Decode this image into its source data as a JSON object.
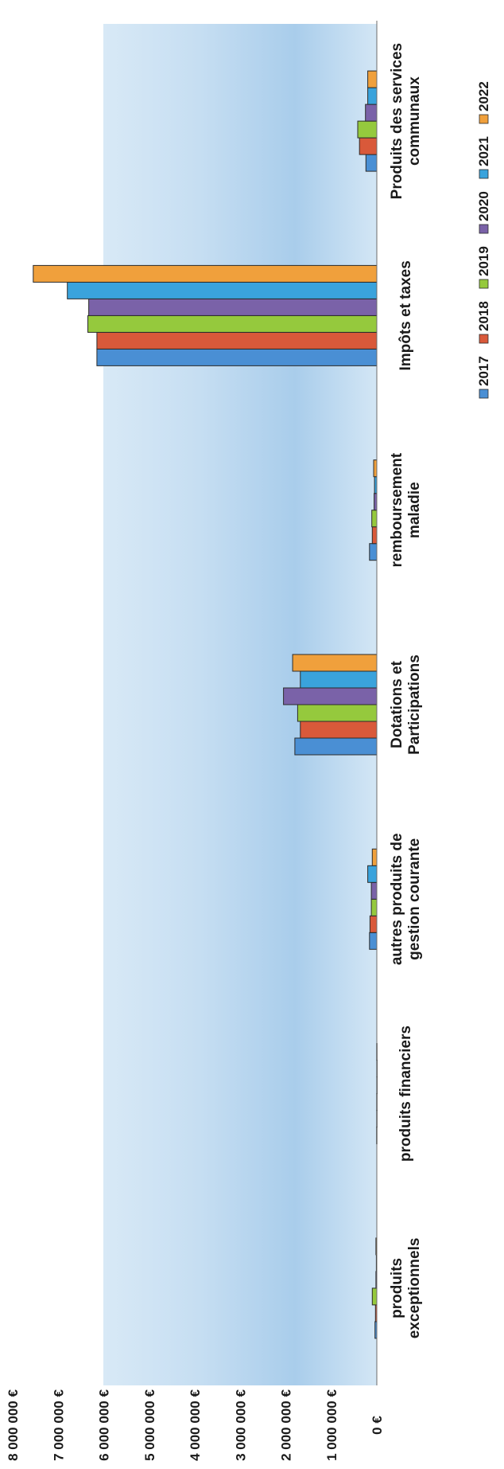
{
  "chart_data": {
    "type": "bar",
    "orientation": "rotated-90-clockwise",
    "title": "",
    "xlabel": "",
    "ylabel": "",
    "categories": [
      [
        "Produits des services",
        "communaux"
      ],
      [
        "Impôts et taxes"
      ],
      [
        "remboursement",
        "maladie"
      ],
      [
        "Dotations et",
        "Participations"
      ],
      [
        "autres produits de",
        "gestion courante"
      ],
      [
        "produits financiers"
      ],
      [
        "produits",
        "exceptionnels"
      ]
    ],
    "series": [
      {
        "name": "2017",
        "color": "#4a8fd4",
        "values": [
          240000,
          6150000,
          160000,
          1800000,
          160000,
          5000,
          40000
        ]
      },
      {
        "name": "2018",
        "color": "#d9593a",
        "values": [
          380000,
          6150000,
          100000,
          1680000,
          150000,
          3000,
          30000
        ]
      },
      {
        "name": "2019",
        "color": "#95c93d",
        "values": [
          420000,
          6350000,
          110000,
          1740000,
          120000,
          3000,
          100000
        ]
      },
      {
        "name": "2020",
        "color": "#7a62a8",
        "values": [
          250000,
          6330000,
          60000,
          2050000,
          120000,
          2000,
          20000
        ]
      },
      {
        "name": "2021",
        "color": "#3aa3dc",
        "values": [
          200000,
          6800000,
          50000,
          1680000,
          200000,
          2000,
          10000
        ]
      },
      {
        "name": "2022",
        "color": "#f0a03c",
        "values": [
          200000,
          7550000,
          70000,
          1850000,
          100000,
          3000,
          20000
        ]
      }
    ],
    "yticks": [
      "0 €",
      "1 000 000 €",
      "2 000 000 €",
      "3 000 000 €",
      "4 000 000 €",
      "5 000 000 €",
      "6 000 000 €",
      "7 000 000 €",
      "8 000 000 €"
    ],
    "ylim": [
      0,
      8000000
    ],
    "grid": false,
    "legend": "top-right"
  }
}
